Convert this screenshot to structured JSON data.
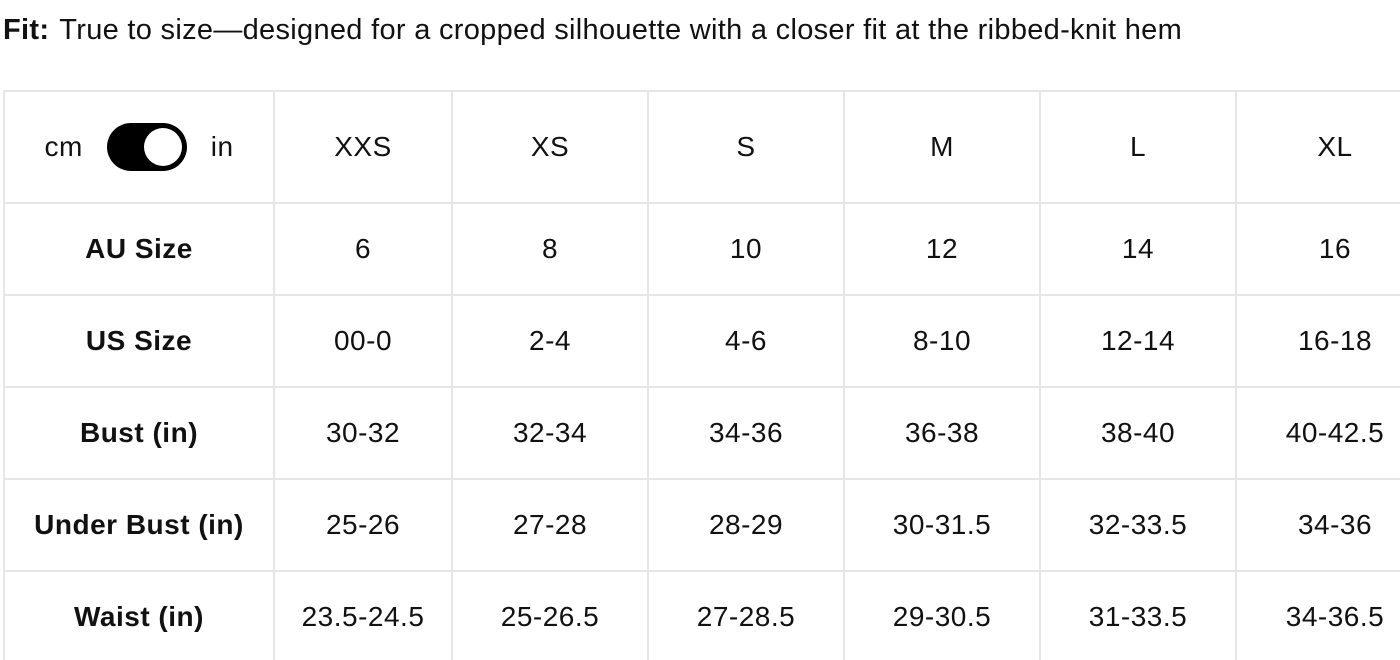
{
  "fit": {
    "label": "Fit:",
    "text": "True to size—designed for a cropped silhouette with a closer fit at the ribbed-knit hem"
  },
  "unit_toggle": {
    "left": "cm",
    "right": "in"
  },
  "table": {
    "columns": [
      "XXS",
      "XS",
      "S",
      "M",
      "L",
      "XL"
    ],
    "rows": [
      {
        "label": "AU Size",
        "cells": [
          "6",
          "8",
          "10",
          "12",
          "14",
          "16"
        ]
      },
      {
        "label": "US Size",
        "cells": [
          "00-0",
          "2-4",
          "4-6",
          "8-10",
          "12-14",
          "16-18"
        ]
      },
      {
        "label": "Bust (in)",
        "cells": [
          "30-32",
          "32-34",
          "34-36",
          "36-38",
          "38-40",
          "40-42.5"
        ]
      },
      {
        "label": "Under Bust (in)",
        "cells": [
          "25-26",
          "27-28",
          "28-29",
          "30-31.5",
          "32-33.5",
          "34-36"
        ]
      },
      {
        "label": "Waist (in)",
        "cells": [
          "23.5-24.5",
          "25-26.5",
          "27-28.5",
          "29-30.5",
          "31-33.5",
          "34-36.5"
        ]
      }
    ]
  }
}
